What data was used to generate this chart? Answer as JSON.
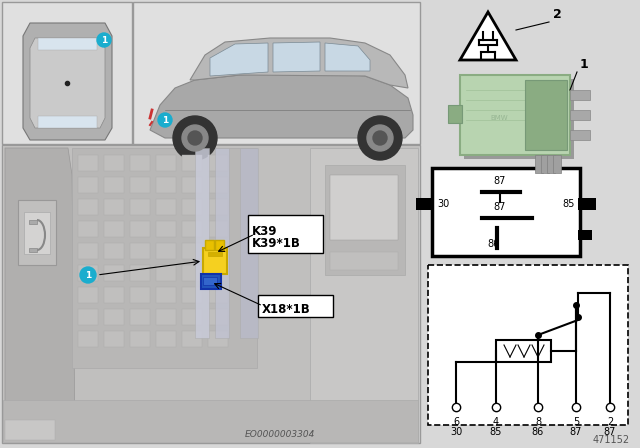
{
  "bg_color": "#d8d8d8",
  "white": "#ffffff",
  "black": "#000000",
  "cyan_color": "#1aadce",
  "relay_green": "#b8d4b0",
  "relay_green_dark": "#8aac82",
  "relay_green_mid": "#a0c098",
  "yellow_color": "#f5d020",
  "blue_color": "#2255bb",
  "gray_car": "#a8a8a8",
  "gray_light": "#c8c8c8",
  "gray_mid": "#b0b0b0",
  "gray_dark": "#888888",
  "label_k39": "K39",
  "label_k39_1b": "K39*1B",
  "label_x18_1b": "X18*1B",
  "eo_number": "EO0000003304",
  "part_number": "471152",
  "pin_top": [
    "6",
    "4",
    "8",
    "5",
    "2"
  ],
  "pin_bot": [
    "30",
    "85",
    "86",
    "87",
    "87"
  ]
}
